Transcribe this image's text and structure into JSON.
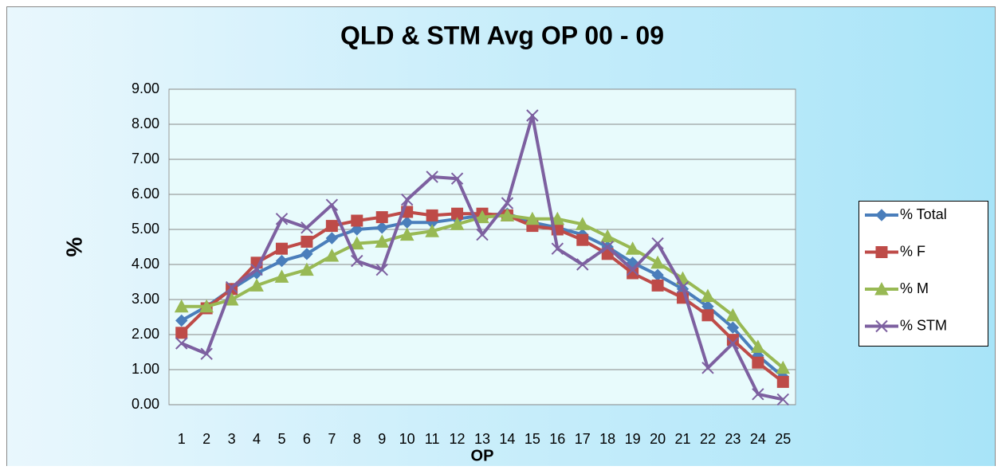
{
  "chart_data": {
    "type": "line",
    "title": "QLD & STM Avg OP 00 - 09",
    "x_label": "OP",
    "y_label": "%",
    "categories": [
      "1",
      "2",
      "3",
      "4",
      "5",
      "6",
      "7",
      "8",
      "9",
      "10",
      "11",
      "12",
      "13",
      "14",
      "15",
      "16",
      "17",
      "18",
      "19",
      "20",
      "21",
      "22",
      "23",
      "24",
      "25"
    ],
    "series": [
      {
        "name": "% Total",
        "color": "#4a7ebb",
        "marker": "diamond",
        "values": [
          2.4,
          2.8,
          3.3,
          3.75,
          4.1,
          4.3,
          4.75,
          5.0,
          5.05,
          5.2,
          5.2,
          5.3,
          5.4,
          5.45,
          5.2,
          5.05,
          4.85,
          4.5,
          4.05,
          3.7,
          3.3,
          2.8,
          2.2,
          1.4,
          0.8
        ]
      },
      {
        "name": "% F",
        "color": "#be4b48",
        "marker": "square",
        "values": [
          2.05,
          2.75,
          3.3,
          4.05,
          4.45,
          4.65,
          5.1,
          5.25,
          5.35,
          5.5,
          5.4,
          5.45,
          5.45,
          5.4,
          5.1,
          5.0,
          4.7,
          4.3,
          3.75,
          3.4,
          3.05,
          2.55,
          1.85,
          1.2,
          0.65
        ]
      },
      {
        "name": "% M",
        "color": "#98b954",
        "marker": "triangle",
        "values": [
          2.8,
          2.8,
          3.0,
          3.4,
          3.65,
          3.85,
          4.25,
          4.6,
          4.65,
          4.85,
          4.95,
          5.15,
          5.35,
          5.4,
          5.3,
          5.3,
          5.15,
          4.8,
          4.45,
          4.05,
          3.6,
          3.1,
          2.55,
          1.65,
          1.05
        ]
      },
      {
        "name": "% STM",
        "color": "#7d60a0",
        "marker": "x",
        "values": [
          1.75,
          1.45,
          3.35,
          3.85,
          5.3,
          5.05,
          5.7,
          4.1,
          3.85,
          5.85,
          6.5,
          6.45,
          4.85,
          5.75,
          8.25,
          4.45,
          4.0,
          4.5,
          3.85,
          4.6,
          3.35,
          1.05,
          1.75,
          0.3,
          0.15
        ]
      }
    ],
    "ylim": [
      0,
      9
    ],
    "yticks": [
      {
        "value": 0,
        "label": "0.00"
      },
      {
        "value": 1,
        "label": "1.00"
      },
      {
        "value": 2,
        "label": "2.00"
      },
      {
        "value": 3,
        "label": "3.00"
      },
      {
        "value": 4,
        "label": "4.00"
      },
      {
        "value": 5,
        "label": "5.00"
      },
      {
        "value": 6,
        "label": "6.00"
      },
      {
        "value": 7,
        "label": "7.00"
      },
      {
        "value": 8,
        "label": "8.00"
      },
      {
        "value": 9,
        "label": "9.00"
      }
    ],
    "grid": true,
    "legend": "right"
  }
}
